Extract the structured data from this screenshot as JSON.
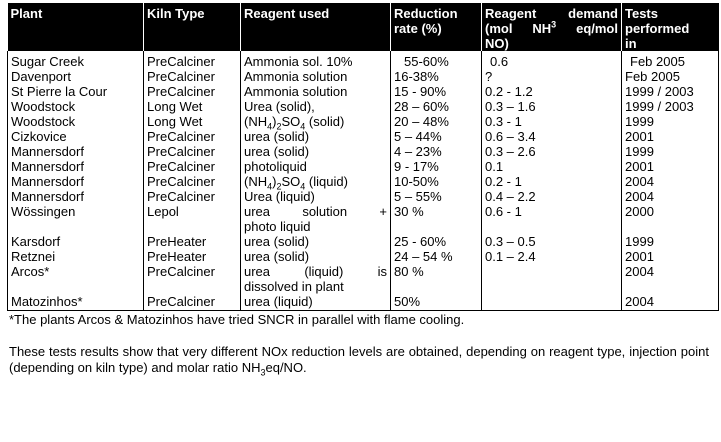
{
  "table": {
    "headers": {
      "plant": "Plant",
      "kiln": "Kiln Type",
      "reagent": "Reagent used",
      "rate_line1": "Reduction",
      "rate_line2": "rate (%)",
      "demand_line1_a": "Reagent",
      "demand_line1_b": "demand",
      "demand_line2_a": "(mol",
      "demand_line2_b": "NH",
      "demand_line2_sup": "3",
      "demand_line2_c": "eq/mol",
      "demand_line3": "NO)",
      "tests_line1": "Tests",
      "tests_line2": "performed",
      "tests_line3": "in"
    },
    "rows": [
      {
        "plant": "Sugar Creek",
        "kiln": "PreCalciner",
        "reagent": "Ammonia sol. 10%",
        "rate": "55-60%",
        "demand": "0.6",
        "tests": "Feb 2005"
      },
      {
        "plant": "Davenport",
        "kiln": "PreCalciner",
        "reagent": "Ammonia solution",
        "rate": "16-38%",
        "demand": "?",
        "tests": "Feb 2005"
      },
      {
        "plant": "St Pierre la Cour",
        "kiln": "PreCalciner",
        "reagent": "Ammonia solution",
        "rate": "15 - 90%",
        "demand": "0.2 - 1.2",
        "tests": "1999 / 2003"
      },
      {
        "plant": "Woodstock",
        "kiln": "Long Wet",
        "reagent": "Urea (solid),",
        "rate": "28 – 60%",
        "demand": "0.3 – 1.6",
        "tests": "1999 / 2003"
      },
      {
        "plant": "Woodstock",
        "kiln": "Long Wet",
        "reagent_pre": "(NH",
        "reagent_sub1": "4",
        "reagent_mid": ")",
        "reagent_sub2": "2",
        "reagent_post": "SO",
        "reagent_sub3": "4",
        "reagent_end": " (solid)",
        "rate": "20 – 48%",
        "demand": "0.3 - 1",
        "tests": "1999"
      },
      {
        "plant": "Cizkovice",
        "kiln": "PreCalciner",
        "reagent": "urea (solid)",
        "rate": "5 – 44%",
        "demand": "0.6 – 3.4",
        "tests": "2001"
      },
      {
        "plant": "Mannersdorf",
        "kiln": "PreCalciner",
        "reagent": "urea (solid)",
        "rate": "4 – 23%",
        "demand": "0.3 – 2.6",
        "tests": "1999"
      },
      {
        "plant": "Mannersdorf",
        "kiln": "PreCalciner",
        "reagent": "photoliquid",
        "rate": "9 - 17%",
        "demand": "0.1",
        "tests": "2001"
      },
      {
        "plant": "Mannersdorf",
        "kiln": "PreCalciner",
        "reagent_pre": "(NH",
        "reagent_sub1": "4",
        "reagent_mid": ")",
        "reagent_sub2": "2",
        "reagent_post": "SO",
        "reagent_sub3": "4",
        "reagent_end": " (liquid)",
        "rate": "10-50%",
        "demand": "0.2 - 1",
        "tests": "2004"
      },
      {
        "plant": "Mannersdorf",
        "kiln": "PreCalciner",
        "reagent": "Urea (liquid)",
        "rate": "5 – 55%",
        "demand": "0.4 – 2.2",
        "tests": "2004"
      },
      {
        "plant": "Wössingen",
        "kiln": "Lepol",
        "reagent_l1a": "urea",
        "reagent_l1b": "solution",
        "reagent_l1c": "+",
        "reagent_l2": "photo liquid",
        "rate": "30 %",
        "demand": "0.6 - 1",
        "tests": "2000"
      },
      {
        "plant": "Karsdorf",
        "kiln": "PreHeater",
        "reagent": "urea (solid)",
        "rate": "25 - 60%",
        "demand": "0.3 – 0.5",
        "tests": "1999"
      },
      {
        "plant": "Retznei",
        "kiln": "PreHeater",
        "reagent": "urea (solid)",
        "rate": "24 – 54 %",
        "demand": "0.1 – 2.4",
        "tests": "2001"
      },
      {
        "plant": "Arcos*",
        "kiln": "PreCalciner",
        "reagent_l1a": "urea",
        "reagent_l1b": "(liquid)",
        "reagent_l1c": "is",
        "reagent_l2": "dissolved in plant",
        "rate": "80 %",
        "demand": "",
        "tests": "2004"
      },
      {
        "plant": "Matozinhos*",
        "kiln": "PreCalciner",
        "reagent": "urea (liquid)",
        "rate": "50%",
        "demand": "",
        "tests": "2004"
      }
    ]
  },
  "footnote": "*The plants Arcos & Matozinhos have tried SNCR in parallel with flame cooling.",
  "paragraph": {
    "text": "These tests results show that very different NOx reduction levels are obtained, depending on reagent type, injection point (depending on kiln type) and molar ratio NH",
    "sub": "3",
    "tail": "eq/NO."
  }
}
